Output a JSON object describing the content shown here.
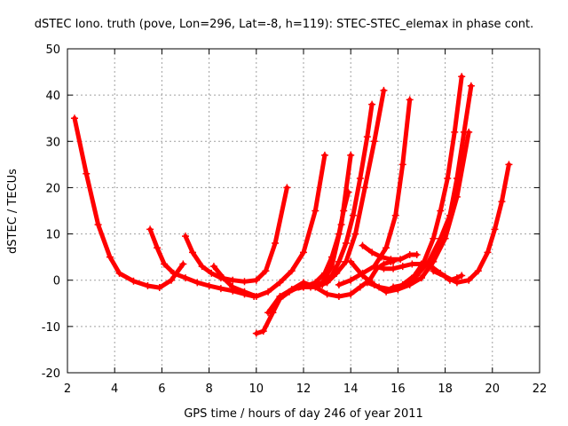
{
  "chart_data": {
    "type": "scatter",
    "title": "dSTEC Iono. truth (pove, Lon=296, Lat=-8, h=119): STEC-STEC_elemax in phase cont.",
    "xlabel": "GPS time / hours of day 246 of year 2011",
    "ylabel": "dSTEC  / TECUs",
    "xlim": [
      2,
      22
    ],
    "ylim": [
      -20,
      50
    ],
    "xticks": [
      "2",
      "4",
      "6",
      "8",
      "10",
      "12",
      "14",
      "16",
      "18",
      "20",
      "22"
    ],
    "yticks": [
      "-20",
      "-10",
      "0",
      "10",
      "20",
      "30",
      "40",
      "50"
    ],
    "grid": true,
    "marker": "plus",
    "color": "#ff0000",
    "series": [
      {
        "x": [
          2.3,
          2.8,
          3.3,
          3.8,
          4.2,
          4.8,
          5.4,
          5.9,
          6.4,
          6.9
        ],
        "y": [
          35,
          23,
          12,
          5,
          1.5,
          -0.2,
          -1.2,
          -1.6,
          0,
          3.5
        ]
      },
      {
        "x": [
          5.5,
          5.8,
          6.1,
          6.5,
          7.0,
          7.5,
          8.0,
          8.5,
          9.0,
          9.5,
          9.9
        ],
        "y": [
          11,
          7,
          3.5,
          1.5,
          0.5,
          -0.5,
          -1.2,
          -1.8,
          -2.3,
          -3.0,
          -3.5
        ]
      },
      {
        "x": [
          7.0,
          7.3,
          7.7,
          8.1,
          8.5,
          9.0,
          9.5,
          10.0,
          10.4,
          10.8,
          11.3
        ],
        "y": [
          9.5,
          6,
          3,
          1.5,
          0.5,
          0,
          -0.3,
          0,
          2,
          8,
          20
        ]
      },
      {
        "x": [
          8.2,
          8.6,
          9.0,
          9.5,
          10.0,
          10.5,
          11.0,
          11.5,
          12.0,
          12.5,
          12.9
        ],
        "y": [
          3,
          0.5,
          -1.5,
          -2.5,
          -3.5,
          -2.5,
          -0.5,
          2,
          6,
          15,
          27
        ]
      },
      {
        "x": [
          10.0,
          10.3,
          10.7,
          11.0,
          11.4,
          11.8,
          12.3,
          12.8,
          13.2,
          13.6,
          14.0
        ],
        "y": [
          -11.5,
          -11,
          -7,
          -4,
          -2.5,
          -1.5,
          -1.5,
          -0.5,
          3,
          12,
          27
        ]
      },
      {
        "x": [
          10.5,
          11.0,
          11.5,
          12.0,
          12.5,
          13.0,
          13.4,
          13.8,
          14.2,
          14.6,
          15.0,
          15.4
        ],
        "y": [
          -7,
          -3.5,
          -2,
          -1.5,
          -1.5,
          -0.5,
          1.5,
          4,
          10,
          20,
          30,
          41
        ]
      },
      {
        "x": [
          11.0,
          11.5,
          12.0,
          12.5,
          13.0,
          13.5,
          14.0,
          14.4,
          14.8,
          15.1,
          15.4,
          15.7,
          15.8
        ],
        "y": [
          -4,
          -2,
          -0.5,
          -1.5,
          -3,
          -3.5,
          -3,
          -1.5,
          0,
          2.5,
          3.5,
          4,
          4
        ]
      },
      {
        "x": [
          12.8,
          13.2,
          13.5,
          13.8,
          14.1,
          14.4,
          14.7,
          14.9
        ],
        "y": [
          -1,
          1,
          4,
          8,
          14,
          22,
          31,
          38
        ]
      },
      {
        "x": [
          11.5,
          12.0,
          12.5,
          12.9,
          13.2,
          13.5,
          13.7,
          13.9
        ],
        "y": [
          -2,
          -1.5,
          -0.5,
          1.5,
          5,
          10,
          15,
          19
        ]
      },
      {
        "x": [
          14.5,
          14.9,
          15.3,
          15.7,
          16.1,
          16.5,
          16.8
        ],
        "y": [
          7.5,
          6,
          5,
          4.5,
          4.5,
          5.5,
          5.5
        ]
      },
      {
        "x": [
          15.0,
          15.4,
          15.8,
          16.2,
          16.6,
          17.0,
          17.4,
          17.8,
          18.2,
          18.5,
          18.7
        ],
        "y": [
          3,
          2.5,
          2.5,
          3,
          3.5,
          3.5,
          3,
          1.5,
          0,
          0.5,
          1
        ]
      },
      {
        "x": [
          14.0,
          14.5,
          15.0,
          15.5,
          16.0,
          16.5,
          17.0,
          17.5,
          18.0,
          18.5,
          19.0
        ],
        "y": [
          4,
          1,
          -1,
          -2.5,
          -2,
          -1,
          0.5,
          4,
          9,
          18,
          32
        ]
      },
      {
        "x": [
          13.5,
          14.0,
          14.5,
          15.0,
          15.5,
          15.9,
          16.2,
          16.5
        ],
        "y": [
          -1,
          0,
          1.5,
          3,
          7,
          14,
          25,
          39
        ]
      },
      {
        "x": [
          14.7,
          15.2,
          15.7,
          16.2,
          16.7,
          17.1,
          17.5,
          17.8,
          18.1,
          18.4,
          18.7
        ],
        "y": [
          -0.5,
          -1.5,
          -2,
          -1,
          1,
          4,
          9,
          15,
          22,
          32,
          44
        ]
      },
      {
        "x": [
          15.8,
          16.3,
          16.8,
          17.3,
          17.8,
          18.2,
          18.5,
          18.8,
          19.1
        ],
        "y": [
          -1.5,
          -1,
          1,
          4,
          9,
          14,
          22,
          32,
          42
        ]
      },
      {
        "x": [
          17.5,
          18.0,
          18.5,
          19.0,
          19.4,
          19.8,
          20.1,
          20.4,
          20.7
        ],
        "y": [
          2,
          0.8,
          -0.5,
          0,
          2,
          6,
          11,
          17,
          25
        ]
      }
    ]
  }
}
